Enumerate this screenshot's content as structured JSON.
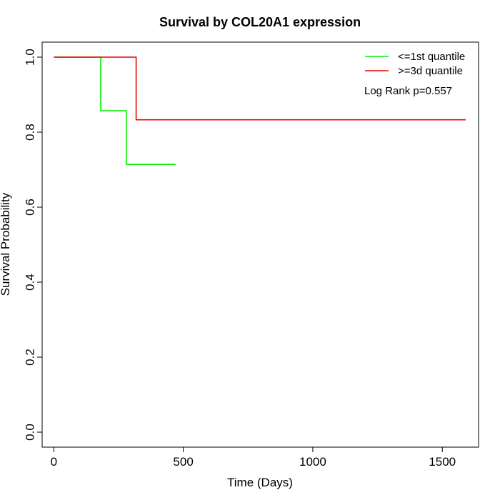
{
  "chart_data": {
    "type": "line",
    "title": "Survival by COL20A1 expression",
    "xlabel": "Time (Days)",
    "ylabel": "Survival Probability",
    "xlim": [
      -45,
      1640
    ],
    "ylim": [
      -0.04,
      1.04
    ],
    "x_ticks": [
      0,
      500,
      1000,
      1500
    ],
    "y_ticks": [
      0.0,
      0.2,
      0.4,
      0.6,
      0.8,
      1.0
    ],
    "x_tick_labels": [
      "0",
      "500",
      "1000",
      "1500"
    ],
    "y_tick_labels": [
      "0.0",
      "0.2",
      "0.4",
      "0.6",
      "0.8",
      "1.0"
    ],
    "grid": false,
    "legend_position": "top-right",
    "annotation": "Log Rank p=0.557",
    "series": [
      {
        "name": "<=1st quantile",
        "color": "#00ee00",
        "step": true,
        "x": [
          0,
          181,
          181,
          280,
          280,
          470
        ],
        "y": [
          1.0,
          1.0,
          0.857,
          0.857,
          0.714,
          0.714
        ]
      },
      {
        "name": ">=3d quantile",
        "color": "#ee0000",
        "step": true,
        "x": [
          0,
          318,
          318,
          1590
        ],
        "y": [
          1.0,
          1.0,
          0.833,
          0.833
        ]
      }
    ]
  }
}
